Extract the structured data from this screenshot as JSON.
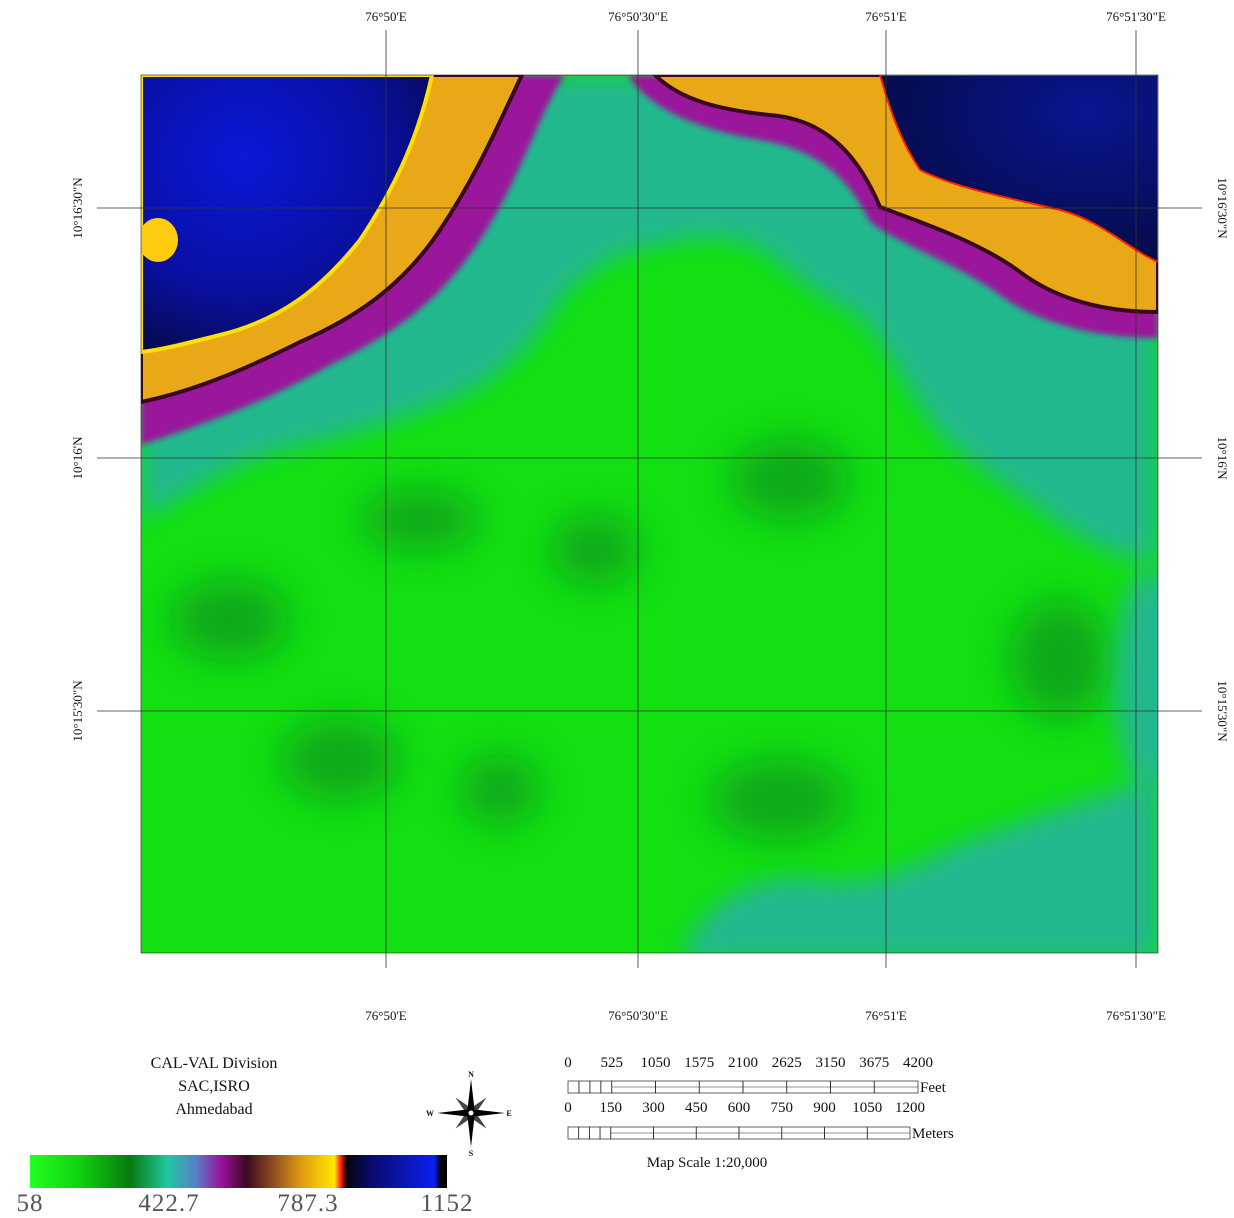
{
  "map": {
    "longitudes": [
      "76°50'E",
      "76°50'30\"E",
      "76°51'E",
      "76°51'30\"E"
    ],
    "latitudes": [
      "10°16'30\"N",
      "10°16'N",
      "10°15'30\"N"
    ],
    "credits": [
      "CAL-VAL Division",
      "SAC,ISRO",
      "Ahmedabad"
    ],
    "compass": {
      "north": "N",
      "south": "S",
      "east": "E",
      "west": "W"
    },
    "scale_bar": {
      "feet": {
        "ticks": [
          0,
          525,
          1050,
          1575,
          2100,
          2625,
          3150,
          3675,
          4200
        ],
        "unit": "Feet"
      },
      "meters": {
        "ticks": [
          0,
          150,
          300,
          450,
          600,
          750,
          900,
          1050,
          1200
        ],
        "unit": "Meters"
      },
      "caption": "Map Scale 1:20,000"
    },
    "legend": {
      "range": [
        58,
        1152
      ],
      "ticks": [
        58,
        422.7,
        787.3,
        1152
      ]
    }
  }
}
